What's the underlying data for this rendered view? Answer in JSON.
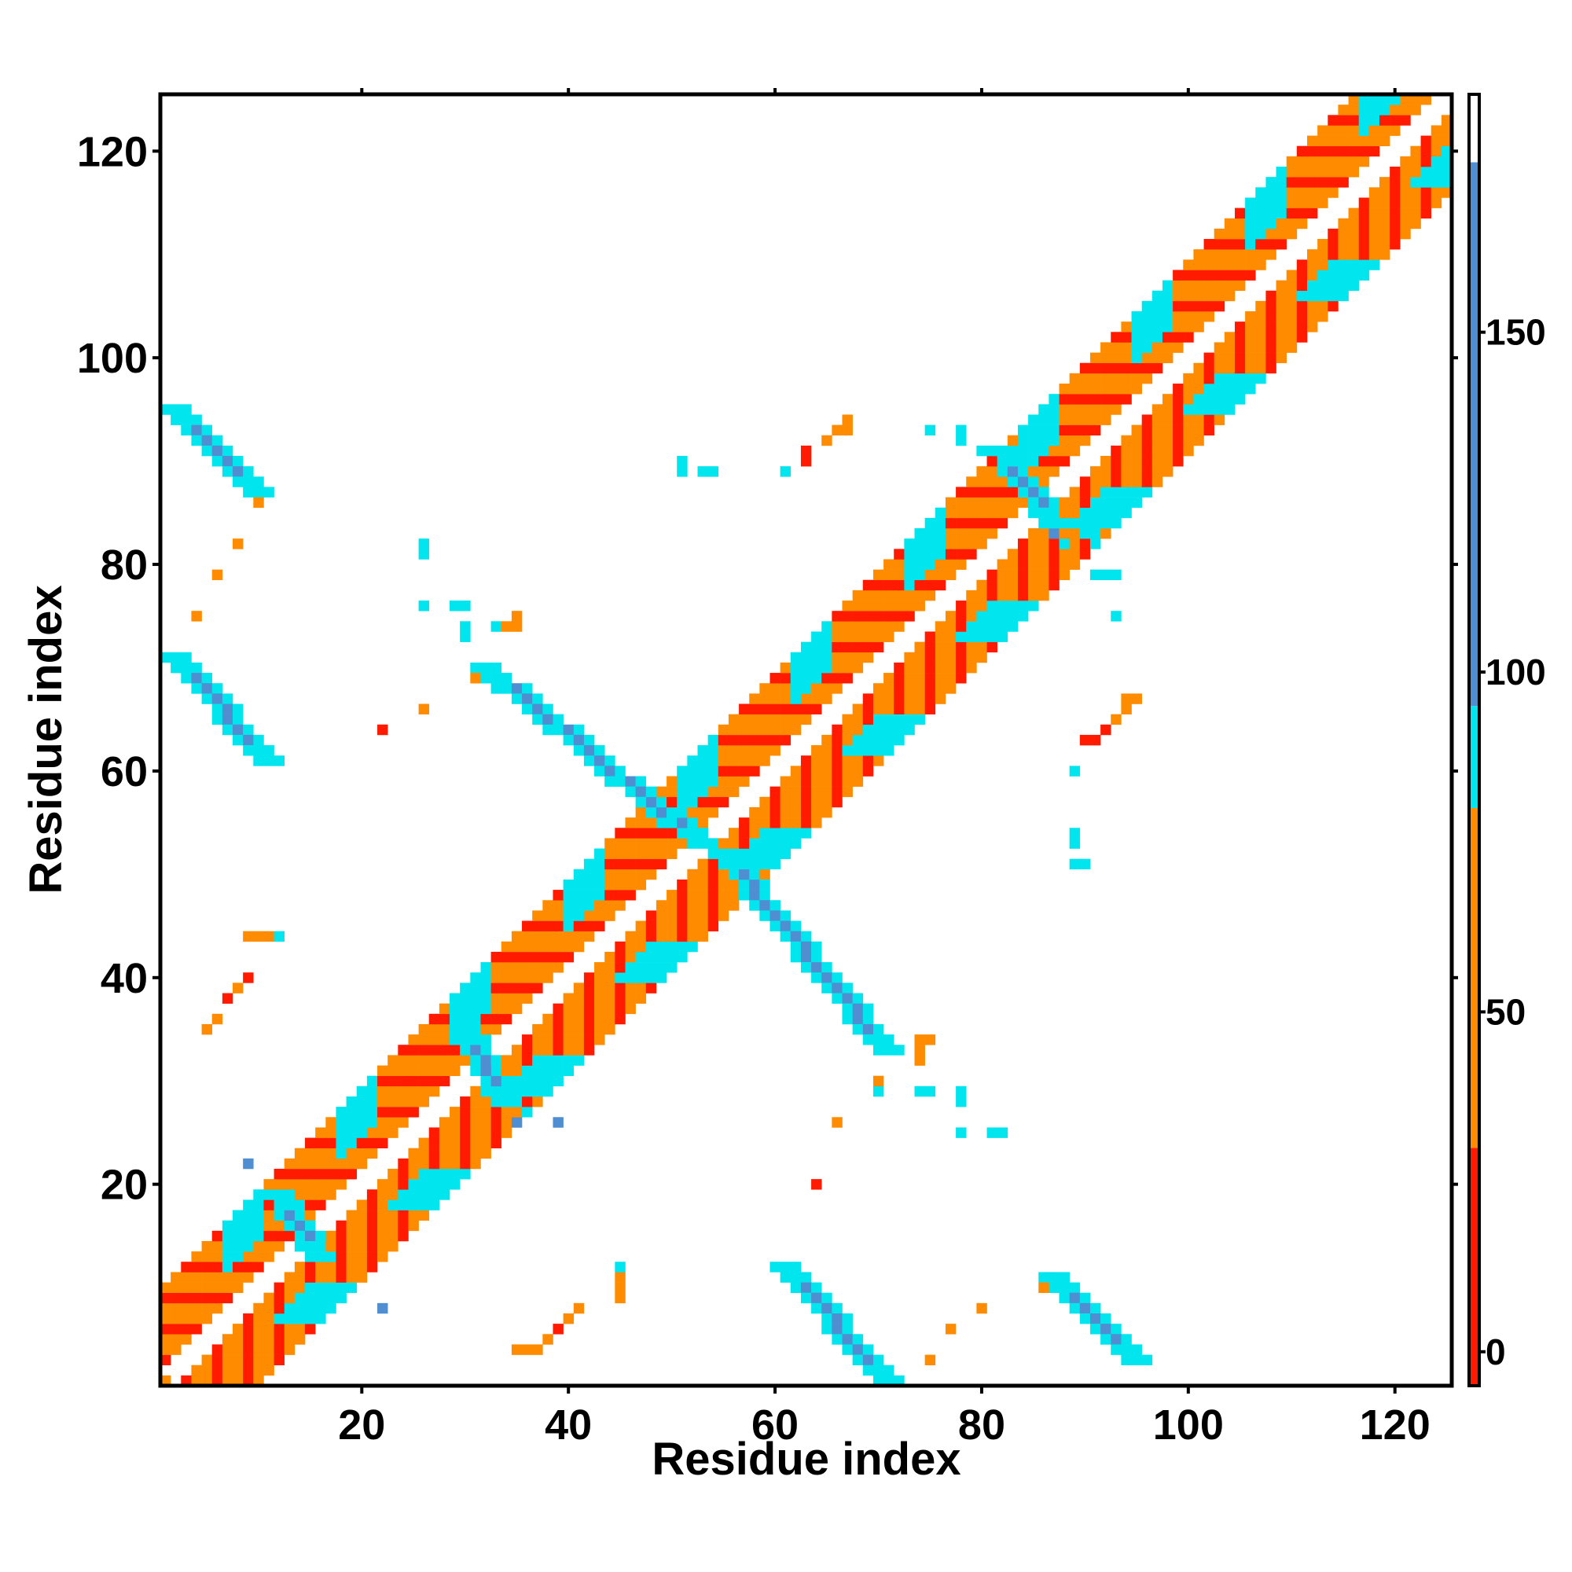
{
  "chart_data": {
    "type": "heatmap",
    "title": "",
    "xlabel": "Residue index",
    "ylabel": "Residue index",
    "xlim": [
      1,
      125
    ],
    "ylim": [
      1,
      125
    ],
    "x_ticks": [
      20,
      40,
      60,
      80,
      100,
      120
    ],
    "y_ticks": [
      20,
      40,
      60,
      80,
      100,
      120
    ],
    "colorbar": {
      "ticks": [
        0,
        50,
        100,
        150
      ],
      "range": [
        -5,
        185
      ],
      "bands": [
        {
          "from": -5,
          "to": 30,
          "color": "#ff1a00"
        },
        {
          "from": 30,
          "to": 80,
          "color": "#ff8c00"
        },
        {
          "from": 80,
          "to": 95,
          "color": "#00e5ee"
        },
        {
          "from": 95,
          "to": 175,
          "color": "#4f8ed0"
        },
        {
          "from": 175,
          "to": 185,
          "color": "#ffffff"
        }
      ]
    },
    "diagonal_band": {
      "from": 1,
      "to": 125,
      "width": 9,
      "inner_offset": 2
    },
    "cells": [
      {
        "x": 1,
        "y": 1,
        "v": 40
      },
      {
        "x": 5,
        "y": 35,
        "v": 70
      },
      {
        "x": 6,
        "y": 36,
        "v": 70
      },
      {
        "x": 7,
        "y": 38,
        "v": 20
      },
      {
        "x": 8,
        "y": 39,
        "v": 30
      },
      {
        "x": 9,
        "y": 40,
        "v": 25
      },
      {
        "x": 9,
        "y": 44,
        "v": 70
      },
      {
        "x": 10,
        "y": 44,
        "v": 70
      },
      {
        "x": 11,
        "y": 44,
        "v": 70
      },
      {
        "x": 12,
        "y": 44,
        "v": 85
      },
      {
        "x": 4,
        "y": 75,
        "v": 40
      },
      {
        "x": 6,
        "y": 79,
        "v": 40
      },
      {
        "x": 8,
        "y": 82,
        "v": 50
      },
      {
        "x": 10,
        "y": 86,
        "v": 60
      },
      {
        "x": 9,
        "y": 22,
        "v": 120
      },
      {
        "x": 22,
        "y": 8,
        "v": 120
      },
      {
        "x": 26,
        "y": 76,
        "v": 90
      },
      {
        "x": 26,
        "y": 81,
        "v": 90
      },
      {
        "x": 26,
        "y": 82,
        "v": 90
      },
      {
        "x": 29,
        "y": 76,
        "v": 90
      },
      {
        "x": 30,
        "y": 76,
        "v": 90
      },
      {
        "x": 30,
        "y": 74,
        "v": 90
      },
      {
        "x": 30,
        "y": 73,
        "v": 90
      },
      {
        "x": 33,
        "y": 74,
        "v": 90
      },
      {
        "x": 34,
        "y": 74,
        "v": 40
      },
      {
        "x": 35,
        "y": 74,
        "v": 40
      },
      {
        "x": 35,
        "y": 75,
        "v": 60
      },
      {
        "x": 31,
        "y": 69,
        "v": 60
      },
      {
        "x": 32,
        "y": 69,
        "v": 90
      },
      {
        "x": 22,
        "y": 64,
        "v": 20
      },
      {
        "x": 26,
        "y": 66,
        "v": 40
      },
      {
        "x": 35,
        "y": 4,
        "v": 60
      },
      {
        "x": 36,
        "y": 4,
        "v": 60
      },
      {
        "x": 37,
        "y": 4,
        "v": 60
      },
      {
        "x": 38,
        "y": 5,
        "v": 30
      },
      {
        "x": 39,
        "y": 6,
        "v": 25
      },
      {
        "x": 40,
        "y": 7,
        "v": 40
      },
      {
        "x": 41,
        "y": 8,
        "v": 40
      },
      {
        "x": 45,
        "y": 9,
        "v": 60
      },
      {
        "x": 45,
        "y": 10,
        "v": 60
      },
      {
        "x": 45,
        "y": 11,
        "v": 60
      },
      {
        "x": 45,
        "y": 12,
        "v": 90
      },
      {
        "x": 35,
        "y": 26,
        "v": 120
      },
      {
        "x": 36,
        "y": 27,
        "v": 90
      },
      {
        "x": 39,
        "y": 26,
        "v": 120
      },
      {
        "x": 51,
        "y": 89,
        "v": 90
      },
      {
        "x": 51,
        "y": 90,
        "v": 90
      },
      {
        "x": 53,
        "y": 89,
        "v": 90
      },
      {
        "x": 54,
        "y": 89,
        "v": 90
      },
      {
        "x": 61,
        "y": 89,
        "v": 90
      },
      {
        "x": 63,
        "y": 90,
        "v": 20
      },
      {
        "x": 63,
        "y": 91,
        "v": 20
      },
      {
        "x": 65,
        "y": 92,
        "v": 30
      },
      {
        "x": 66,
        "y": 93,
        "v": 40
      },
      {
        "x": 67,
        "y": 93,
        "v": 60
      },
      {
        "x": 67,
        "y": 94,
        "v": 60
      },
      {
        "x": 64,
        "y": 20,
        "v": 20
      },
      {
        "x": 66,
        "y": 26,
        "v": 40
      },
      {
        "x": 70,
        "y": 29,
        "v": 90
      },
      {
        "x": 70,
        "y": 30,
        "v": 60
      },
      {
        "x": 74,
        "y": 29,
        "v": 90
      },
      {
        "x": 75,
        "y": 29,
        "v": 90
      },
      {
        "x": 74,
        "y": 32,
        "v": 40
      },
      {
        "x": 74,
        "y": 33,
        "v": 40
      },
      {
        "x": 74,
        "y": 34,
        "v": 40
      },
      {
        "x": 75,
        "y": 34,
        "v": 60
      },
      {
        "x": 78,
        "y": 25,
        "v": 90
      },
      {
        "x": 78,
        "y": 28,
        "v": 90
      },
      {
        "x": 78,
        "y": 29,
        "v": 90
      },
      {
        "x": 81,
        "y": 25,
        "v": 90
      },
      {
        "x": 82,
        "y": 25,
        "v": 90
      },
      {
        "x": 75,
        "y": 3,
        "v": 40
      },
      {
        "x": 77,
        "y": 6,
        "v": 40
      },
      {
        "x": 80,
        "y": 8,
        "v": 40
      },
      {
        "x": 86,
        "y": 10,
        "v": 40
      },
      {
        "x": 75,
        "y": 93,
        "v": 90
      },
      {
        "x": 78,
        "y": 92,
        "v": 90
      },
      {
        "x": 78,
        "y": 93,
        "v": 90
      },
      {
        "x": 89,
        "y": 51,
        "v": 90
      },
      {
        "x": 90,
        "y": 51,
        "v": 90
      },
      {
        "x": 89,
        "y": 53,
        "v": 90
      },
      {
        "x": 89,
        "y": 54,
        "v": 90
      },
      {
        "x": 89,
        "y": 60,
        "v": 90
      },
      {
        "x": 90,
        "y": 63,
        "v": 20
      },
      {
        "x": 91,
        "y": 63,
        "v": 20
      },
      {
        "x": 92,
        "y": 64,
        "v": 20
      },
      {
        "x": 93,
        "y": 65,
        "v": 30
      },
      {
        "x": 94,
        "y": 66,
        "v": 40
      },
      {
        "x": 94,
        "y": 67,
        "v": 60
      },
      {
        "x": 95,
        "y": 67,
        "v": 60
      },
      {
        "x": 91,
        "y": 79,
        "v": 90
      },
      {
        "x": 92,
        "y": 79,
        "v": 90
      },
      {
        "x": 93,
        "y": 79,
        "v": 90
      },
      {
        "x": 93,
        "y": 75,
        "v": 90
      },
      {
        "x": 90,
        "y": 83,
        "v": 90
      },
      {
        "x": 91,
        "y": 83,
        "v": 90
      },
      {
        "x": 91,
        "y": 82,
        "v": 90
      },
      {
        "x": 88,
        "y": 82,
        "v": 90
      },
      {
        "x": 87,
        "y": 83,
        "v": 120
      },
      {
        "x": 80,
        "y": 91,
        "v": 90
      },
      {
        "x": 81,
        "y": 91,
        "v": 90
      },
      {
        "x": 82,
        "y": 90,
        "v": 90
      },
      {
        "x": 82,
        "y": 89,
        "v": 90
      }
    ],
    "strands": [
      {
        "from": [
          2,
          95
        ],
        "to": [
          10,
          87
        ],
        "v": 140,
        "edge_v": 90
      },
      {
        "from": [
          2,
          71
        ],
        "to": [
          11,
          61
        ],
        "v": 140,
        "edge_v": 90
      },
      {
        "from": [
          32,
          70
        ],
        "to": [
          53,
          53
        ],
        "v": 140,
        "edge_v": 90
      },
      {
        "from": [
          55,
          52
        ],
        "to": [
          71,
          33
        ],
        "v": 140,
        "edge_v": 90
      },
      {
        "from": [
          61,
          12
        ],
        "to": [
          71,
          1
        ],
        "v": 140,
        "edge_v": 90
      },
      {
        "from": [
          87,
          11
        ],
        "to": [
          95,
          3
        ],
        "v": 140,
        "edge_v": 90
      },
      {
        "from": [
          12,
          19
        ],
        "to": [
          16,
          13
        ],
        "v": 130,
        "edge_v": 90
      },
      {
        "from": [
          30,
          35
        ],
        "to": [
          34,
          28
        ],
        "v": 120,
        "edge_v": 90
      },
      {
        "from": [
          82,
          91
        ],
        "to": [
          87,
          84
        ],
        "v": 120,
        "edge_v": 90
      }
    ]
  }
}
